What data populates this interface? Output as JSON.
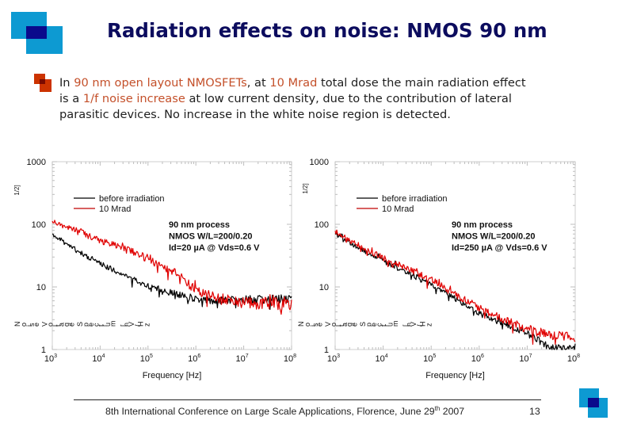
{
  "slide": {
    "title": "Radiation effects on noise: NMOS 90 nm",
    "colors": {
      "logo_light": "#0d9ad2",
      "logo_dark": "#0a0a8c",
      "title": "#0c0c5e",
      "bullet": "#cc3300",
      "highlight": "#c4502a"
    }
  },
  "bullet": {
    "icon": "square-bullet-icon",
    "lines": [
      [
        {
          "t": "In "
        },
        {
          "t": "90 nm open layout NMOSFETs",
          "hl": true
        },
        {
          "t": ", at "
        },
        {
          "t": "10 Mrad",
          "hl": true
        },
        {
          "t": " total dose the main radiation effect"
        }
      ],
      [
        {
          "t": "is a "
        },
        {
          "t": "1/f noise increase",
          "hl": true
        },
        {
          "t": " at low current density, due to the contribution of lateral"
        }
      ],
      [
        {
          "t": "parasitic devices. No increase in the white noise region is detected."
        }
      ]
    ]
  },
  "chart_data": [
    {
      "type": "line",
      "title": "",
      "xlabel": "Frequency [Hz]",
      "ylabel_main": "Noise Voltage Spectrum [nV/Hz",
      "ylabel_exponent": "1/2]",
      "xscale": "log",
      "yscale": "log",
      "xlim": [
        1000,
        100000000
      ],
      "ylim": [
        1,
        1000
      ],
      "x_ticks": [
        {
          "base": "10",
          "exp": "3"
        },
        {
          "base": "10",
          "exp": "4"
        },
        {
          "base": "10",
          "exp": "5"
        },
        {
          "base": "10",
          "exp": "6"
        },
        {
          "base": "10",
          "exp": "7"
        },
        {
          "base": "10",
          "exp": "8"
        }
      ],
      "y_ticks": [
        "1",
        "10",
        "100",
        "1000"
      ],
      "grid": false,
      "legend_position": "top-left",
      "annotation": [
        "90 nm process",
        "NMOS W/L=200/0.20",
        "Id=20 µA @ Vds=0.6 V"
      ],
      "x": [
        1000,
        3162,
        10000,
        31623,
        100000,
        316228,
        1000000,
        3162278,
        10000000,
        31622777,
        100000000
      ],
      "series": [
        {
          "name": "before irradiation",
          "color": "#000000",
          "values": [
            70,
            38,
            24,
            15,
            10.5,
            8,
            6.4,
            6,
            6.3,
            6.3,
            6.5
          ]
        },
        {
          "name": "10 Mrad",
          "color": "#e00000",
          "values": [
            110,
            80,
            55,
            40,
            29,
            18,
            9,
            6.5,
            5.6,
            5.5,
            5.3
          ]
        }
      ]
    },
    {
      "type": "line",
      "title": "",
      "xlabel": "Frequency [Hz]",
      "ylabel_main": "Noise Voltage Spectrum [nV/Hz",
      "ylabel_exponent": "1/2]",
      "xscale": "log",
      "yscale": "log",
      "xlim": [
        1000,
        100000000
      ],
      "ylim": [
        1,
        1000
      ],
      "x_ticks": [
        {
          "base": "10",
          "exp": "3"
        },
        {
          "base": "10",
          "exp": "4"
        },
        {
          "base": "10",
          "exp": "5"
        },
        {
          "base": "10",
          "exp": "6"
        },
        {
          "base": "10",
          "exp": "7"
        },
        {
          "base": "10",
          "exp": "8"
        }
      ],
      "y_ticks": [
        "1",
        "10",
        "100",
        "1000"
      ],
      "grid": false,
      "legend_position": "top-left",
      "annotation": [
        "90 nm process",
        "NMOS W/L=200/0.20",
        "Id=250 µA @ Vds=0.6 V"
      ],
      "x": [
        1000,
        3162,
        10000,
        31623,
        100000,
        316228,
        1000000,
        3162278,
        10000000,
        31622777,
        100000000
      ],
      "series": [
        {
          "name": "before irradiation",
          "color": "#000000",
          "values": [
            70,
            42,
            26,
            17,
            11,
            6.5,
            3.8,
            2.6,
            1.8,
            1.05,
            1.15
          ]
        },
        {
          "name": "10 Mrad",
          "color": "#e00000",
          "values": [
            78,
            46,
            29,
            19.5,
            13,
            7.5,
            4.6,
            3.0,
            2.1,
            1.7,
            1.6
          ]
        }
      ]
    }
  ],
  "footer": {
    "text_before": "8th International Conference on Large Scale Applications, Florence, June 29",
    "superscript": "th",
    "text_after": " 2007",
    "page_number": "13"
  }
}
